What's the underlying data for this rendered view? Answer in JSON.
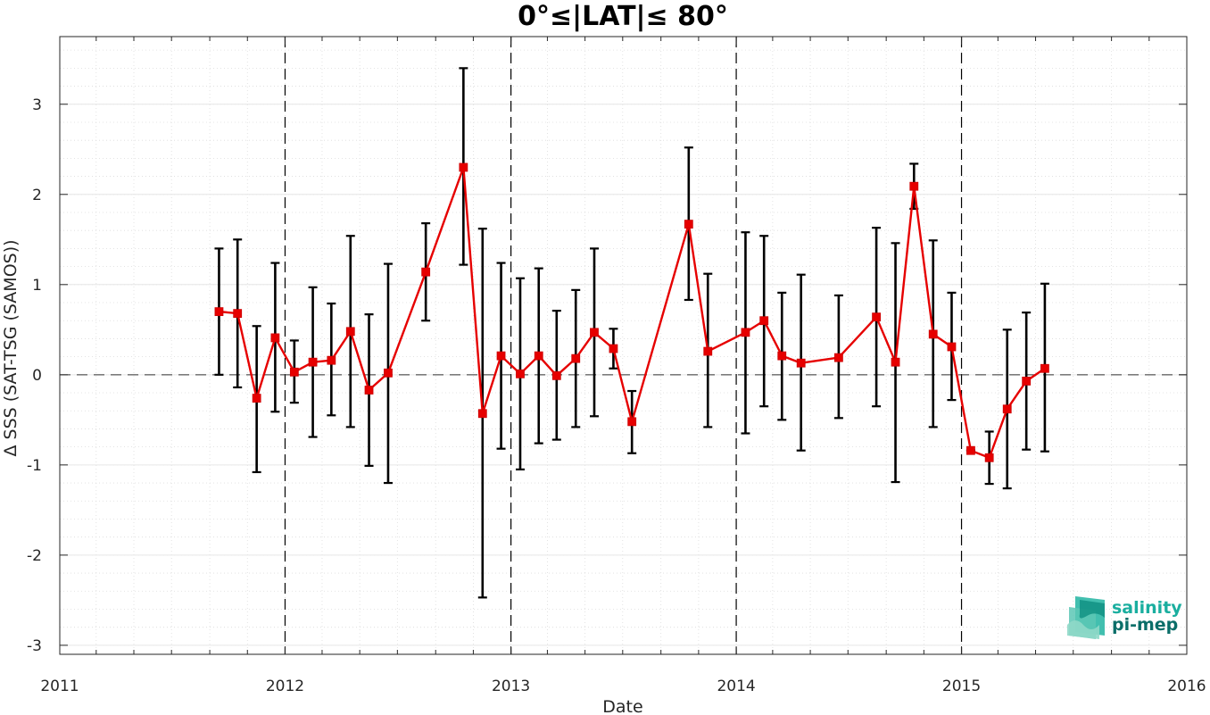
{
  "chart_data": {
    "type": "line",
    "title": "0°≤|LAT|≤ 80°",
    "xlabel": "Date",
    "ylabel": "Δ SSS (SAT-TSG (SAMOS))",
    "xlim": [
      "2011-01-01",
      "2016-01-01"
    ],
    "ylim": [
      -3.1,
      3.75
    ],
    "x_ticks": [
      "2011",
      "2012",
      "2013",
      "2014",
      "2015",
      "2016"
    ],
    "y_ticks": [
      "-3",
      "-2",
      "-1",
      "0",
      "1",
      "2",
      "3"
    ],
    "grid": true,
    "zero_line": true,
    "year_boundary_lines": [
      "2012",
      "2013",
      "2014",
      "2015"
    ],
    "series": [
      {
        "color": "#e60000",
        "marker": "square",
        "points": [
          {
            "x": "2011-09-16",
            "y": 0.7,
            "err_low": 0.0,
            "err_high": 1.4
          },
          {
            "x": "2011-10-16",
            "y": 0.68,
            "err_low": -0.14,
            "err_high": 1.5
          },
          {
            "x": "2011-11-16",
            "y": -0.26,
            "err_low": -1.08,
            "err_high": 0.54
          },
          {
            "x": "2011-12-16",
            "y": 0.41,
            "err_low": -0.41,
            "err_high": 1.24
          },
          {
            "x": "2012-01-16",
            "y": 0.03,
            "err_low": -0.31,
            "err_high": 0.38
          },
          {
            "x": "2012-02-15",
            "y": 0.14,
            "err_low": -0.69,
            "err_high": 0.97
          },
          {
            "x": "2012-03-16",
            "y": 0.16,
            "err_low": -0.45,
            "err_high": 0.79
          },
          {
            "x": "2012-04-16",
            "y": 0.48,
            "err_low": -0.58,
            "err_high": 1.54
          },
          {
            "x": "2012-05-16",
            "y": -0.17,
            "err_low": -1.01,
            "err_high": 0.67
          },
          {
            "x": "2012-06-16",
            "y": 0.02,
            "err_low": -1.2,
            "err_high": 1.23
          },
          {
            "x": "2012-08-16",
            "y": 1.14,
            "err_low": 0.6,
            "err_high": 1.68
          },
          {
            "x": "2012-10-16",
            "y": 2.3,
            "err_low": 1.22,
            "err_high": 3.4
          },
          {
            "x": "2012-11-16",
            "y": -0.43,
            "err_low": -2.47,
            "err_high": 1.62
          },
          {
            "x": "2012-12-16",
            "y": 0.21,
            "err_low": -0.82,
            "err_high": 1.24
          },
          {
            "x": "2013-01-16",
            "y": 0.01,
            "err_low": -1.05,
            "err_high": 1.07
          },
          {
            "x": "2013-02-15",
            "y": 0.21,
            "err_low": -0.76,
            "err_high": 1.18
          },
          {
            "x": "2013-03-16",
            "y": -0.01,
            "err_low": -0.72,
            "err_high": 0.71
          },
          {
            "x": "2013-04-16",
            "y": 0.18,
            "err_low": -0.58,
            "err_high": 0.94
          },
          {
            "x": "2013-05-16",
            "y": 0.47,
            "err_low": -0.46,
            "err_high": 1.4
          },
          {
            "x": "2013-06-16",
            "y": 0.29,
            "err_low": 0.07,
            "err_high": 0.51
          },
          {
            "x": "2013-07-16",
            "y": -0.52,
            "err_low": -0.87,
            "err_high": -0.18
          },
          {
            "x": "2013-10-16",
            "y": 1.67,
            "err_low": 0.83,
            "err_high": 2.52
          },
          {
            "x": "2013-11-16",
            "y": 0.26,
            "err_low": -0.58,
            "err_high": 1.12
          },
          {
            "x": "2014-01-16",
            "y": 0.47,
            "err_low": -0.65,
            "err_high": 1.58
          },
          {
            "x": "2014-02-15",
            "y": 0.6,
            "err_low": -0.35,
            "err_high": 1.54
          },
          {
            "x": "2014-03-16",
            "y": 0.21,
            "err_low": -0.5,
            "err_high": 0.91
          },
          {
            "x": "2014-04-16",
            "y": 0.13,
            "err_low": -0.84,
            "err_high": 1.11
          },
          {
            "x": "2014-06-16",
            "y": 0.19,
            "err_low": -0.48,
            "err_high": 0.88
          },
          {
            "x": "2014-08-16",
            "y": 0.64,
            "err_low": -0.35,
            "err_high": 1.63
          },
          {
            "x": "2014-09-16",
            "y": 0.14,
            "err_low": -1.19,
            "err_high": 1.46
          },
          {
            "x": "2014-10-16",
            "y": 2.09,
            "err_low": 1.84,
            "err_high": 2.34
          },
          {
            "x": "2014-11-16",
            "y": 0.45,
            "err_low": -0.58,
            "err_high": 1.49
          },
          {
            "x": "2014-12-16",
            "y": 0.31,
            "err_low": -0.28,
            "err_high": 0.91
          },
          {
            "x": "2015-01-16",
            "y": -0.84,
            "err_low": -0.84,
            "err_high": -0.84
          },
          {
            "x": "2015-02-15",
            "y": -0.92,
            "err_low": -1.21,
            "err_high": -0.63
          },
          {
            "x": "2015-03-16",
            "y": -0.38,
            "err_low": -1.26,
            "err_high": 0.5
          },
          {
            "x": "2015-04-16",
            "y": -0.07,
            "err_low": -0.83,
            "err_high": 0.69
          },
          {
            "x": "2015-05-16",
            "y": 0.07,
            "err_low": -0.85,
            "err_high": 1.01
          }
        ]
      }
    ]
  },
  "logo": {
    "line1": "salinity",
    "line2": "pi-mep",
    "color_line1": "#1aae9f",
    "color_line2": "#0b6e69",
    "icon": "waves-cube-icon"
  }
}
